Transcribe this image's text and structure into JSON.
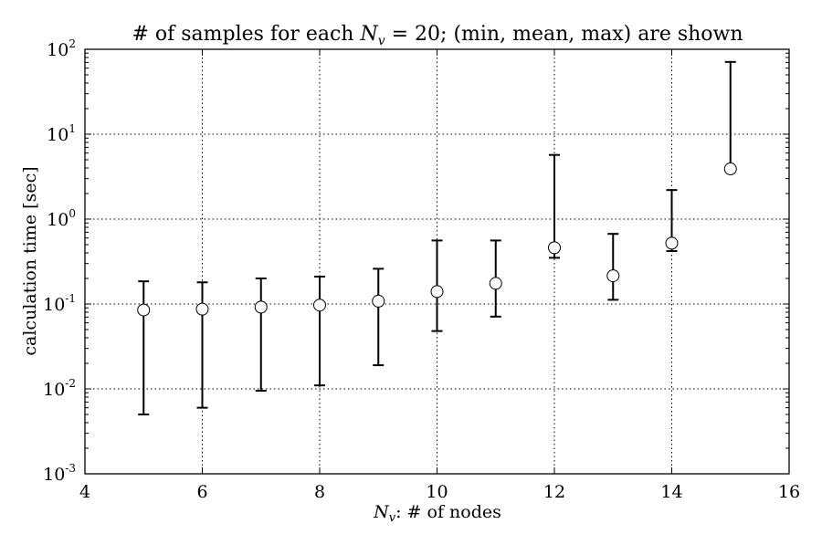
{
  "chart_data": {
    "type": "scatter",
    "title_prefix": "# of samples for each ",
    "title_var": "N",
    "title_sub": "v",
    "title_suffix": " = 20; (min, mean, max) are shown",
    "xlabel_var": "N",
    "xlabel_sub": "v",
    "xlabel_suffix": ": # of nodes",
    "ylabel": "calculation time [sec]",
    "xlim": [
      4,
      16
    ],
    "ylim": [
      0.001,
      100
    ],
    "yscale": "log",
    "grid": true,
    "x_ticks": [
      "4",
      "6",
      "8",
      "10",
      "12",
      "14",
      "16"
    ],
    "y_ticks": [
      {
        "base": "10",
        "exp": "-3"
      },
      {
        "base": "10",
        "exp": "-2"
      },
      {
        "base": "10",
        "exp": "-1"
      },
      {
        "base": "10",
        "exp": "0"
      },
      {
        "base": "10",
        "exp": "1"
      },
      {
        "base": "10",
        "exp": "2"
      }
    ],
    "points": [
      {
        "x": 5,
        "min": 0.005,
        "mean": 0.085,
        "max": 0.185
      },
      {
        "x": 6,
        "min": 0.006,
        "mean": 0.087,
        "max": 0.18
      },
      {
        "x": 7,
        "min": 0.0095,
        "mean": 0.092,
        "max": 0.2
      },
      {
        "x": 8,
        "min": 0.011,
        "mean": 0.097,
        "max": 0.21
      },
      {
        "x": 9,
        "min": 0.019,
        "mean": 0.108,
        "max": 0.26
      },
      {
        "x": 10,
        "min": 0.048,
        "mean": 0.14,
        "max": 0.56
      },
      {
        "x": 11,
        "min": 0.071,
        "mean": 0.175,
        "max": 0.56
      },
      {
        "x": 12,
        "min": 0.35,
        "mean": 0.46,
        "max": 5.7
      },
      {
        "x": 13,
        "min": 0.112,
        "mean": 0.215,
        "max": 0.67
      },
      {
        "x": 14,
        "min": 0.42,
        "mean": 0.52,
        "max": 2.2
      },
      {
        "x": 15,
        "min": 3.9,
        "mean": 3.9,
        "max": 71
      }
    ]
  }
}
